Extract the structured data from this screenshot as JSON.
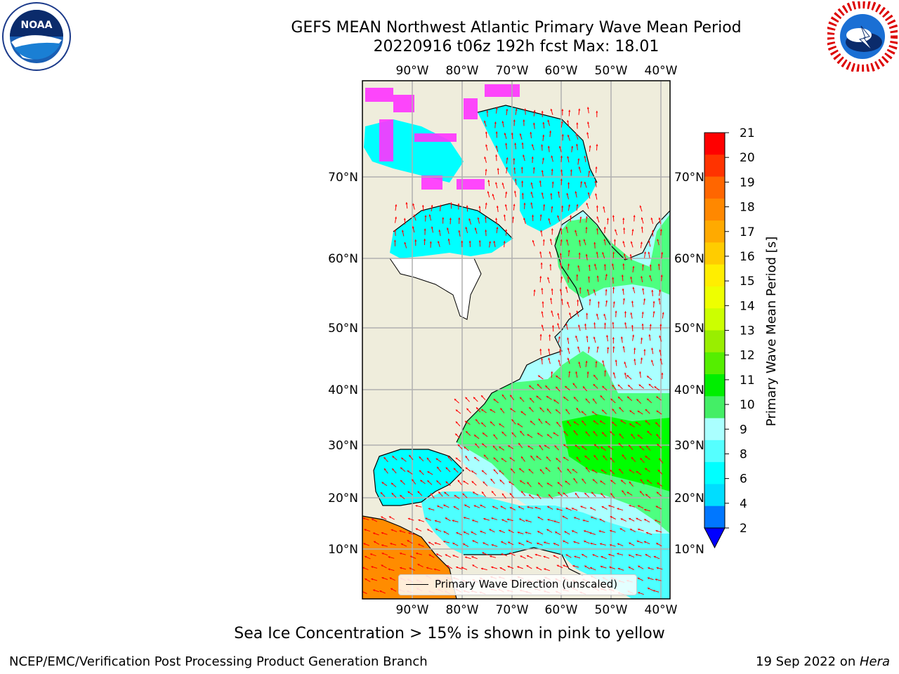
{
  "header": {
    "title_line1": "GEFS MEAN Northwest Atlantic Primary Wave Mean Period",
    "title_line2": "20220916 t06z 192h fcst   Max: 18.01"
  },
  "map": {
    "lon_ticks": [
      "90°W",
      "80°W",
      "70°W",
      "60°W",
      "50°W",
      "40°W"
    ],
    "lat_ticks": [
      "70°N",
      "60°N",
      "50°N",
      "40°N",
      "30°N",
      "20°N",
      "10°N"
    ],
    "legend_label": "Primary Wave Direction (unscaled)",
    "colors": {
      "land": "#efeddc",
      "ocean_short": "#00ffff",
      "ocean_mid": "#4dffff",
      "ocean_light": "#aaffff",
      "green_light": "#4dff80",
      "green": "#00ff00",
      "orange": "#ff8c00",
      "arrow": "#ff0000",
      "ice": "#ff33ff",
      "grid": "#b0b0b0"
    }
  },
  "colorbar": {
    "label": "Primary Wave Mean Period [s]",
    "ticks": [
      "21",
      "20",
      "19",
      "18",
      "17",
      "16",
      "15",
      "14",
      "13",
      "12",
      "11",
      "10",
      "9",
      "8",
      "6",
      "4",
      "2"
    ],
    "colors": [
      "#ff0000",
      "#ff3300",
      "#ff6600",
      "#ff8800",
      "#ffaa00",
      "#ffcc00",
      "#ffee00",
      "#eeff00",
      "#ccff00",
      "#99ee00",
      "#55ee00",
      "#00ee00",
      "#44ee66",
      "#aaffff",
      "#55ffff",
      "#00ffff",
      "#00ddff",
      "#0077ff",
      "#0000ff"
    ]
  },
  "footer": {
    "note": "Sea Ice Concentration > 15% is shown in pink to yellow",
    "left": "NCEP/EMC/Verification Post Processing Product Generation Branch",
    "right_date": "19 Sep 2022 on ",
    "right_machine": "Hera"
  }
}
